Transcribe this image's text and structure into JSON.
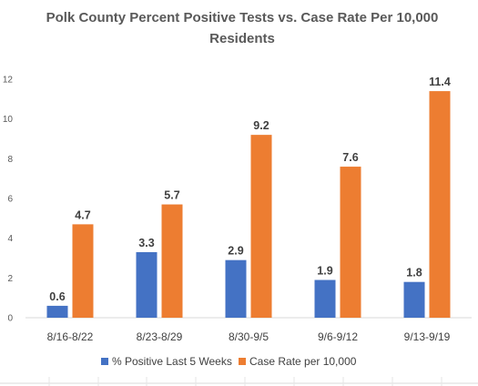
{
  "chart_data": {
    "type": "bar",
    "title": "Polk County Percent Positive Tests vs. Case Rate Per 10,000",
    "title_line2": "Residents",
    "categories": [
      "8/16-8/22",
      "8/23-8/29",
      "8/30-9/5",
      "9/6-9/12",
      "9/13-9/19"
    ],
    "series": [
      {
        "name": "% Positive Last 5 Weeks",
        "values": [
          0.6,
          3.3,
          2.9,
          1.9,
          1.8
        ],
        "color": "#4472C4"
      },
      {
        "name": "Case Rate per 10,000",
        "values": [
          4.7,
          5.7,
          9.2,
          7.6,
          11.4
        ],
        "color": "#ED7D31"
      }
    ],
    "ylim": [
      0,
      12
    ],
    "yticks": [
      0,
      2,
      4,
      6,
      8,
      10,
      12
    ],
    "grid": false,
    "legend_position": "bottom",
    "data_labels": true
  }
}
